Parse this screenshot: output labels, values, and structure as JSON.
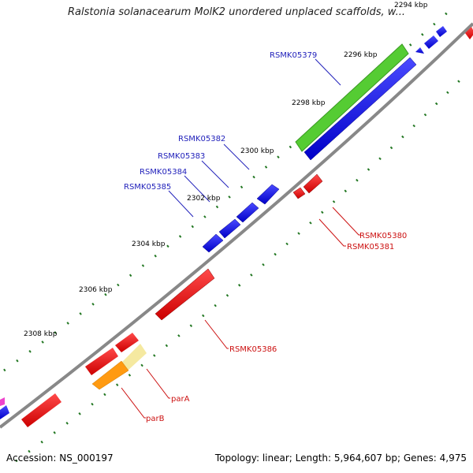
{
  "title": "Ralstonia solanacearum MolK2 unordered unplaced scaffolds, w...",
  "footer": {
    "accession": "Accession: NS_000197",
    "summary": "Topology: linear; Length: 5,964,607 bp; Genes: 4,975"
  },
  "ticks": [
    "2294 kbp",
    "2296 kbp",
    "2298 kbp",
    "2300 kbp",
    "2302 kbp",
    "2304 kbp",
    "2306 kbp",
    "2308 kbp"
  ],
  "genes_forward": [
    "RSMK05379",
    "RSMK05382",
    "RSMK05383",
    "RSMK05384",
    "RSMK05385"
  ],
  "genes_reverse": [
    "RSMK05380",
    "RSMK05381",
    "RSMK05386",
    "parA",
    "parB"
  ],
  "colors": {
    "backbone": "#888888",
    "forward_gene": "#0000ee",
    "reverse_gene": "#ee1111",
    "forward_label": "#2222bb",
    "reverse_label": "#cc1111",
    "gc_skew": "#55cc33",
    "gc_content": "#ff9a11",
    "highlight": "#f5e9a0",
    "tick": "#227722"
  }
}
